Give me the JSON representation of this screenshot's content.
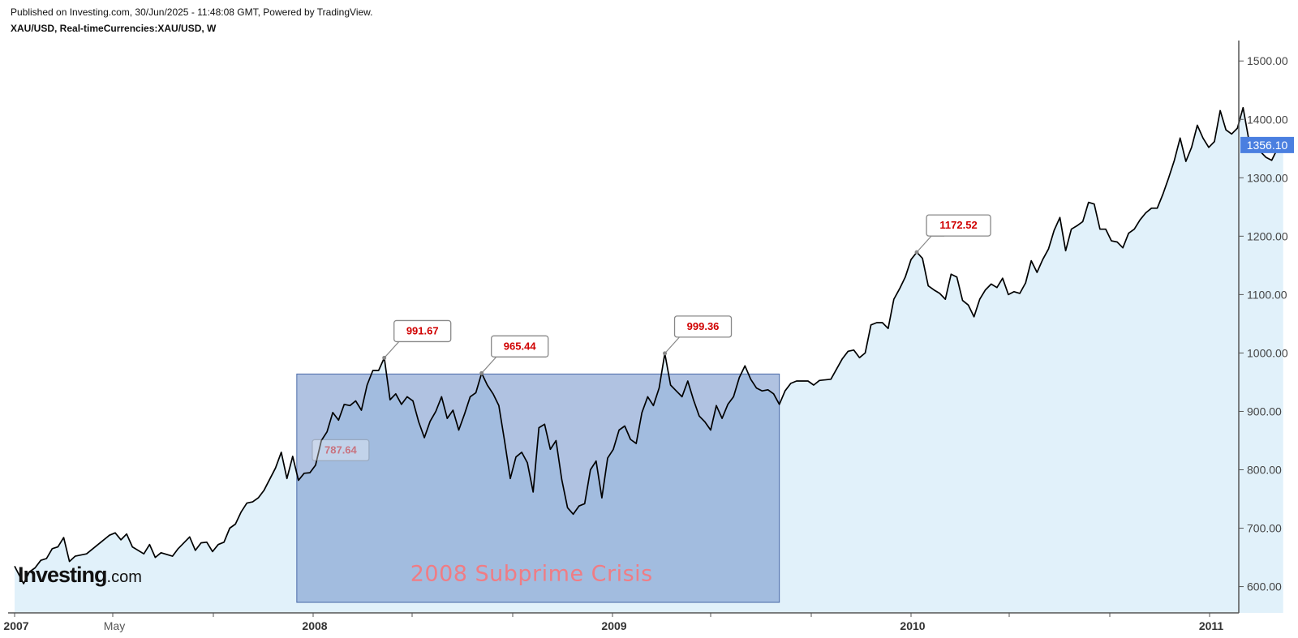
{
  "header": {
    "published": "Published on Investing.com, 30/Jun/2025 - 11:48:08 GMT, Powered by TradingView.",
    "symbol": "XAU/USD, Real-timeCurrencies:XAU/USD, W"
  },
  "logo": {
    "main": "Investing",
    "suffix": ".com"
  },
  "colors": {
    "line": "#000000",
    "area_fill": "#e1f1fa",
    "crisis_box": "#6f8fc8",
    "crisis_label": "#f07c84",
    "callout_value": "#d00000",
    "price_tag": "#4a7fe0",
    "axis": "#555555"
  },
  "chart_data": {
    "type": "area",
    "title": "XAU/USD, Real-timeCurrencies:XAU/USD, W",
    "xlabel": "",
    "ylabel": "",
    "x_start": "2007-01-01",
    "x_end": "2011-02-01",
    "ylim": [
      555,
      1535
    ],
    "y_ticks": [
      "600.00",
      "700.00",
      "800.00",
      "900.00",
      "1000.00",
      "1100.00",
      "1200.00",
      "1300.00",
      "1400.00",
      "1500.00"
    ],
    "x_ticks": [
      {
        "date": "2007-01-01",
        "label": "2007",
        "bold": true
      },
      {
        "date": "2007-05-01",
        "label": "May",
        "bold": false
      },
      {
        "date": "2008-01-01",
        "label": "2008",
        "bold": true
      },
      {
        "date": "2009-01-01",
        "label": "2009",
        "bold": true
      },
      {
        "date": "2010-01-01",
        "label": "2010",
        "bold": true
      },
      {
        "date": "2011-01-01",
        "label": "2011",
        "bold": true
      }
    ],
    "minor_x_ticks": [
      "2007-09-01",
      "2008-05-01",
      "2008-09-01",
      "2009-05-01",
      "2009-09-01",
      "2010-05-01",
      "2010-09-01"
    ],
    "grid": false,
    "last_price": "1356.10",
    "series": [
      {
        "points": [
          [
            "2007-01-01",
            635
          ],
          [
            "2007-01-12",
            605
          ],
          [
            "2007-01-19",
            625
          ],
          [
            "2007-01-26",
            632
          ],
          [
            "2007-02-02",
            645
          ],
          [
            "2007-02-09",
            648
          ],
          [
            "2007-02-16",
            665
          ],
          [
            "2007-02-23",
            668
          ],
          [
            "2007-03-02",
            684
          ],
          [
            "2007-03-09",
            643
          ],
          [
            "2007-03-16",
            652
          ],
          [
            "2007-03-30",
            656
          ],
          [
            "2007-04-13",
            672
          ],
          [
            "2007-04-27",
            688
          ],
          [
            "2007-05-04",
            692
          ],
          [
            "2007-05-11",
            680
          ],
          [
            "2007-05-18",
            690
          ],
          [
            "2007-05-25",
            668
          ],
          [
            "2007-06-08",
            656
          ],
          [
            "2007-06-15",
            672
          ],
          [
            "2007-06-22",
            650
          ],
          [
            "2007-06-29",
            658
          ],
          [
            "2007-07-13",
            652
          ],
          [
            "2007-07-20",
            665
          ],
          [
            "2007-08-03",
            685
          ],
          [
            "2007-08-10",
            662
          ],
          [
            "2007-08-17",
            675
          ],
          [
            "2007-08-24",
            676
          ],
          [
            "2007-08-31",
            660
          ],
          [
            "2007-09-07",
            672
          ],
          [
            "2007-09-14",
            676
          ],
          [
            "2007-09-21",
            700
          ],
          [
            "2007-09-28",
            707
          ],
          [
            "2007-10-05",
            728
          ],
          [
            "2007-10-12",
            743
          ],
          [
            "2007-10-19",
            745
          ],
          [
            "2007-10-26",
            752
          ],
          [
            "2007-11-02",
            765
          ],
          [
            "2007-11-16",
            803
          ],
          [
            "2007-11-23",
            830
          ],
          [
            "2007-11-30",
            785
          ],
          [
            "2007-12-07",
            823
          ],
          [
            "2007-12-14",
            782
          ],
          [
            "2007-12-21",
            794
          ],
          [
            "2007-12-28",
            795
          ],
          [
            "2008-01-04",
            808
          ],
          [
            "2008-01-11",
            850
          ],
          [
            "2008-01-18",
            865
          ],
          [
            "2008-01-25",
            898
          ],
          [
            "2008-02-01",
            885
          ],
          [
            "2008-02-08",
            912
          ],
          [
            "2008-02-15",
            910
          ],
          [
            "2008-02-22",
            918
          ],
          [
            "2008-02-29",
            902
          ],
          [
            "2008-03-07",
            945
          ],
          [
            "2008-03-14",
            970
          ],
          [
            "2008-03-21",
            970
          ],
          [
            "2008-03-28",
            991.67
          ],
          [
            "2008-04-04",
            920
          ],
          [
            "2008-04-11",
            930
          ],
          [
            "2008-04-18",
            912
          ],
          [
            "2008-04-25",
            925
          ],
          [
            "2008-05-02",
            918
          ],
          [
            "2008-05-09",
            882
          ],
          [
            "2008-05-16",
            855
          ],
          [
            "2008-05-23",
            883
          ],
          [
            "2008-05-30",
            900
          ],
          [
            "2008-06-06",
            925
          ],
          [
            "2008-06-13",
            888
          ],
          [
            "2008-06-20",
            902
          ],
          [
            "2008-06-27",
            868
          ],
          [
            "2008-07-04",
            895
          ],
          [
            "2008-07-11",
            925
          ],
          [
            "2008-07-18",
            932
          ],
          [
            "2008-07-25",
            965.44
          ],
          [
            "2008-08-01",
            945
          ],
          [
            "2008-08-08",
            930
          ],
          [
            "2008-08-15",
            910
          ],
          [
            "2008-08-22",
            850
          ],
          [
            "2008-08-29",
            785
          ],
          [
            "2008-09-05",
            822
          ],
          [
            "2008-09-12",
            830
          ],
          [
            "2008-09-19",
            812
          ],
          [
            "2008-09-26",
            762
          ],
          [
            "2008-10-03",
            872
          ],
          [
            "2008-10-10",
            878
          ],
          [
            "2008-10-17",
            835
          ],
          [
            "2008-10-24",
            850
          ],
          [
            "2008-10-31",
            783
          ],
          [
            "2008-11-07",
            735
          ],
          [
            "2008-11-14",
            724
          ],
          [
            "2008-11-21",
            738
          ],
          [
            "2008-11-28",
            742
          ],
          [
            "2008-12-05",
            800
          ],
          [
            "2008-12-12",
            815
          ],
          [
            "2008-12-19",
            752
          ],
          [
            "2008-12-26",
            820
          ],
          [
            "2009-01-02",
            835
          ],
          [
            "2009-01-09",
            868
          ],
          [
            "2009-01-16",
            875
          ],
          [
            "2009-01-23",
            852
          ],
          [
            "2009-01-30",
            845
          ],
          [
            "2009-02-06",
            898
          ],
          [
            "2009-02-13",
            925
          ],
          [
            "2009-02-20",
            910
          ],
          [
            "2009-02-27",
            940
          ],
          [
            "2009-03-06",
            999.36
          ],
          [
            "2009-03-13",
            945
          ],
          [
            "2009-03-20",
            935
          ],
          [
            "2009-03-27",
            925
          ],
          [
            "2009-04-03",
            952
          ],
          [
            "2009-04-10",
            920
          ],
          [
            "2009-04-17",
            892
          ],
          [
            "2009-04-24",
            882
          ],
          [
            "2009-05-01",
            868
          ],
          [
            "2009-05-08",
            910
          ],
          [
            "2009-05-15",
            888
          ],
          [
            "2009-05-22",
            912
          ],
          [
            "2009-05-29",
            925
          ],
          [
            "2009-06-05",
            958
          ],
          [
            "2009-06-12",
            978
          ],
          [
            "2009-06-19",
            955
          ],
          [
            "2009-06-26",
            940
          ],
          [
            "2009-07-03",
            935
          ],
          [
            "2009-07-10",
            937
          ],
          [
            "2009-07-17",
            930
          ],
          [
            "2009-07-24",
            912
          ],
          [
            "2009-07-31",
            935
          ],
          [
            "2009-08-07",
            948
          ],
          [
            "2009-08-14",
            952
          ],
          [
            "2009-08-28",
            952
          ],
          [
            "2009-09-04",
            945
          ],
          [
            "2009-09-11",
            953
          ],
          [
            "2009-09-25",
            955
          ],
          [
            "2009-10-09",
            990
          ],
          [
            "2009-10-16",
            1003
          ],
          [
            "2009-10-23",
            1005
          ],
          [
            "2009-10-30",
            992
          ],
          [
            "2009-11-06",
            1000
          ],
          [
            "2009-11-13",
            1048
          ],
          [
            "2009-11-20",
            1052
          ],
          [
            "2009-11-27",
            1052
          ],
          [
            "2009-12-04",
            1042
          ],
          [
            "2009-12-11",
            1092
          ],
          [
            "2009-12-18",
            1110
          ],
          [
            "2009-12-25",
            1130
          ],
          [
            "2010-01-01",
            1160
          ],
          [
            "2010-01-08",
            1172.52
          ],
          [
            "2010-01-15",
            1162
          ],
          [
            "2010-01-22",
            1115
          ],
          [
            "2010-01-29",
            1108
          ],
          [
            "2010-02-05",
            1102
          ],
          [
            "2010-02-12",
            1092
          ],
          [
            "2010-02-19",
            1135
          ],
          [
            "2010-02-26",
            1130
          ],
          [
            "2010-03-05",
            1090
          ],
          [
            "2010-03-12",
            1082
          ],
          [
            "2010-03-19",
            1062
          ],
          [
            "2010-03-26",
            1092
          ],
          [
            "2010-04-02",
            1108
          ],
          [
            "2010-04-09",
            1118
          ],
          [
            "2010-04-16",
            1112
          ],
          [
            "2010-04-23",
            1128
          ],
          [
            "2010-04-30",
            1100
          ],
          [
            "2010-05-07",
            1105
          ],
          [
            "2010-05-14",
            1102
          ],
          [
            "2010-05-21",
            1120
          ],
          [
            "2010-05-28",
            1158
          ],
          [
            "2010-06-04",
            1138
          ],
          [
            "2010-06-11",
            1160
          ],
          [
            "2010-06-18",
            1178
          ],
          [
            "2010-06-25",
            1210
          ],
          [
            "2010-07-02",
            1232
          ],
          [
            "2010-07-09",
            1175
          ],
          [
            "2010-07-16",
            1212
          ],
          [
            "2010-07-23",
            1218
          ],
          [
            "2010-07-30",
            1225
          ],
          [
            "2010-08-06",
            1258
          ],
          [
            "2010-08-13",
            1255
          ],
          [
            "2010-08-20",
            1212
          ],
          [
            "2010-08-27",
            1212
          ],
          [
            "2010-09-03",
            1192
          ],
          [
            "2010-09-10",
            1190
          ],
          [
            "2010-09-17",
            1180
          ],
          [
            "2010-09-24",
            1205
          ],
          [
            "2010-10-01",
            1212
          ],
          [
            "2010-10-08",
            1228
          ],
          [
            "2010-10-15",
            1240
          ],
          [
            "2010-10-22",
            1248
          ],
          [
            "2010-10-29",
            1248
          ],
          [
            "2010-11-05",
            1272
          ],
          [
            "2010-11-12",
            1300
          ],
          [
            "2010-11-19",
            1330
          ],
          [
            "2010-11-26",
            1368
          ],
          [
            "2010-12-03",
            1328
          ],
          [
            "2010-12-10",
            1352
          ],
          [
            "2010-12-17",
            1390
          ],
          [
            "2010-12-24",
            1368
          ],
          [
            "2010-12-31",
            1352
          ],
          [
            "2011-01-07",
            1362
          ],
          [
            "2011-01-14",
            1415
          ],
          [
            "2011-01-21",
            1382
          ],
          [
            "2011-01-28",
            1375
          ],
          [
            "2011-02-04",
            1385
          ],
          [
            "2011-02-11",
            1420
          ],
          [
            "2011-02-18",
            1365
          ],
          [
            "2011-02-25",
            1358
          ],
          [
            "2011-03-04",
            1345
          ],
          [
            "2011-03-11",
            1335
          ],
          [
            "2011-03-18",
            1330
          ],
          [
            "2011-03-25",
            1350
          ],
          [
            "2011-04-01",
            1356.1
          ]
        ]
      }
    ],
    "annotations": {
      "box": {
        "x_start": "2007-12-12",
        "x_end": "2009-07-24",
        "y_low": 573,
        "y_high": 964,
        "label": "2008 Subprime Crisis"
      },
      "callouts": [
        {
          "x": "2007-12-19",
          "y": 787.64,
          "label": "787.64",
          "faded": true
        },
        {
          "x": "2008-03-28",
          "y": 991.67,
          "label": "991.67"
        },
        {
          "x": "2008-07-25",
          "y": 965.44,
          "label": "965.44"
        },
        {
          "x": "2009-03-06",
          "y": 999.36,
          "label": "999.36"
        },
        {
          "x": "2010-01-08",
          "y": 1172.52,
          "label": "1172.52"
        }
      ]
    }
  }
}
